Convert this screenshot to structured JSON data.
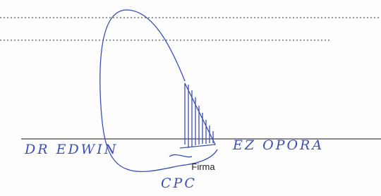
{
  "handwriting": {
    "name_start": "DR EDWIN",
    "name_end": "EZ OPORA",
    "title": "CPC"
  },
  "form": {
    "signature_label": "Firma"
  }
}
